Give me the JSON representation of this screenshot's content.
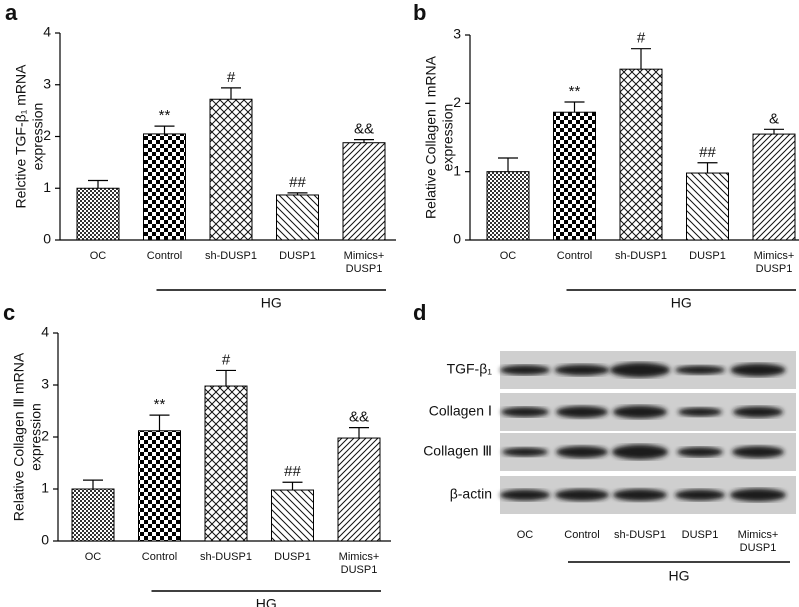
{
  "chart_data": [
    {
      "type": "bar",
      "panel": "a",
      "ylabel": [
        "Relctive TGF-β₁ mRNA",
        "expression"
      ],
      "categories": [
        "OC",
        "Control",
        "sh-DUSP1",
        "DUSP1",
        "Mimics+\nDUSP1"
      ],
      "values": [
        1.0,
        2.05,
        2.72,
        0.87,
        1.88
      ],
      "errors": [
        0.15,
        0.15,
        0.22,
        0.04,
        0.06
      ],
      "annotations": [
        null,
        "**",
        "#",
        "##",
        "&&"
      ],
      "group": "HG",
      "ylim": [
        0,
        4
      ],
      "yticks": [
        0,
        1,
        2,
        3,
        4
      ]
    },
    {
      "type": "bar",
      "panel": "b",
      "ylabel": [
        "Relative Collagen Ⅰ mRNA",
        "expression"
      ],
      "categories": [
        "OC",
        "Control",
        "sh-DUSP1",
        "DUSP1",
        "Mimics+\nDUSP1"
      ],
      "values": [
        1.0,
        1.87,
        2.5,
        0.98,
        1.55
      ],
      "errors": [
        0.2,
        0.15,
        0.3,
        0.15,
        0.07
      ],
      "annotations": [
        null,
        "**",
        "#",
        "##",
        "&"
      ],
      "group": "HG",
      "ylim": [
        0,
        3
      ],
      "yticks": [
        0,
        1,
        2,
        3
      ]
    },
    {
      "type": "bar",
      "panel": "c",
      "ylabel": [
        "Relative Collagen Ⅲ mRNA",
        "expression"
      ],
      "categories": [
        "OC",
        "Control",
        "sh-DUSP1",
        "DUSP1",
        "Mimics+\nDUSP1"
      ],
      "values": [
        1.0,
        2.12,
        2.98,
        0.98,
        1.98
      ],
      "errors": [
        0.17,
        0.3,
        0.3,
        0.15,
        0.2
      ],
      "annotations": [
        null,
        "**",
        "#",
        "##",
        "&&"
      ],
      "group": "HG",
      "ylim": [
        0,
        4
      ],
      "yticks": [
        0,
        1,
        2,
        3,
        4
      ]
    }
  ],
  "blot": {
    "panel": "d",
    "rows": [
      "TGF-β₁",
      "Collagen Ⅰ",
      "Collagen Ⅲ",
      "β-actin"
    ],
    "columns": [
      "OC",
      "Control",
      "sh-DUSP1",
      "DUSP1",
      "Mimics+\nDUSP1"
    ],
    "group": "HG"
  }
}
